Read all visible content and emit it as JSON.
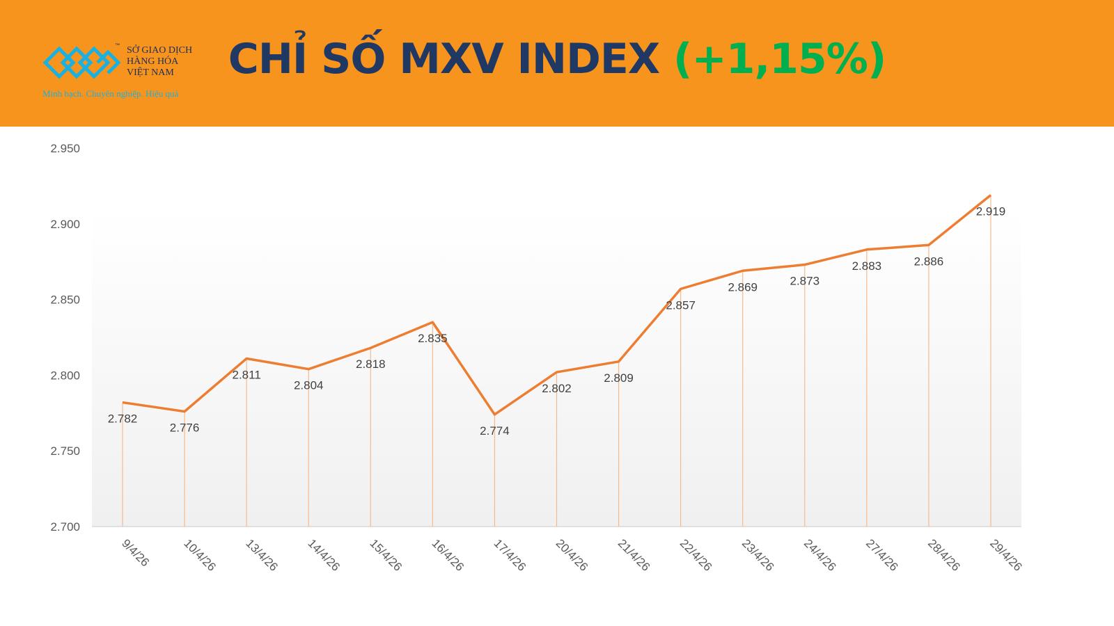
{
  "header": {
    "logo": {
      "line1": "SỞ GIAO DỊCH",
      "line2": "HÀNG HÓA",
      "line3": "VIỆT NAM",
      "tagline": "Minh bạch. Chuyên nghiệp. Hiệu quả",
      "tm": "™"
    },
    "title": "CHỈ SỐ MXV INDEX",
    "change": "(+1,15%)"
  },
  "colors": {
    "header_bg": "#f7941d",
    "title": "#1f3864",
    "change": "#00b050",
    "line": "#ed7d31",
    "logo": "#1ab0e0"
  },
  "chart_data": {
    "type": "line",
    "categories": [
      "9/4/26",
      "10/4/26",
      "13/4/26",
      "14/4/26",
      "15/4/26",
      "16/4/26",
      "17/4/26",
      "20/4/26",
      "21/4/26",
      "22/4/26",
      "23/4/26",
      "24/4/26",
      "27/4/26",
      "28/4/26",
      "29/4/26"
    ],
    "values": [
      2782,
      2776,
      2811,
      2804,
      2818,
      2835,
      2774,
      2802,
      2809,
      2857,
      2869,
      2873,
      2883,
      2886,
      2919
    ],
    "data_labels": [
      "2.782",
      "2.776",
      "2.811",
      "2.804",
      "2.818",
      "2.835",
      "2.774",
      "2.802",
      "2.809",
      "2.857",
      "2.869",
      "2.873",
      "2.883",
      "2.886",
      "2.919"
    ],
    "ylim": [
      2700,
      2950
    ],
    "yticks": [
      2700,
      2750,
      2800,
      2850,
      2900,
      2950
    ],
    "ytick_labels": [
      "2.700",
      "2.750",
      "2.800",
      "2.850",
      "2.900",
      "2.950"
    ],
    "drop_lines": true,
    "grid": false,
    "legend": "none"
  }
}
